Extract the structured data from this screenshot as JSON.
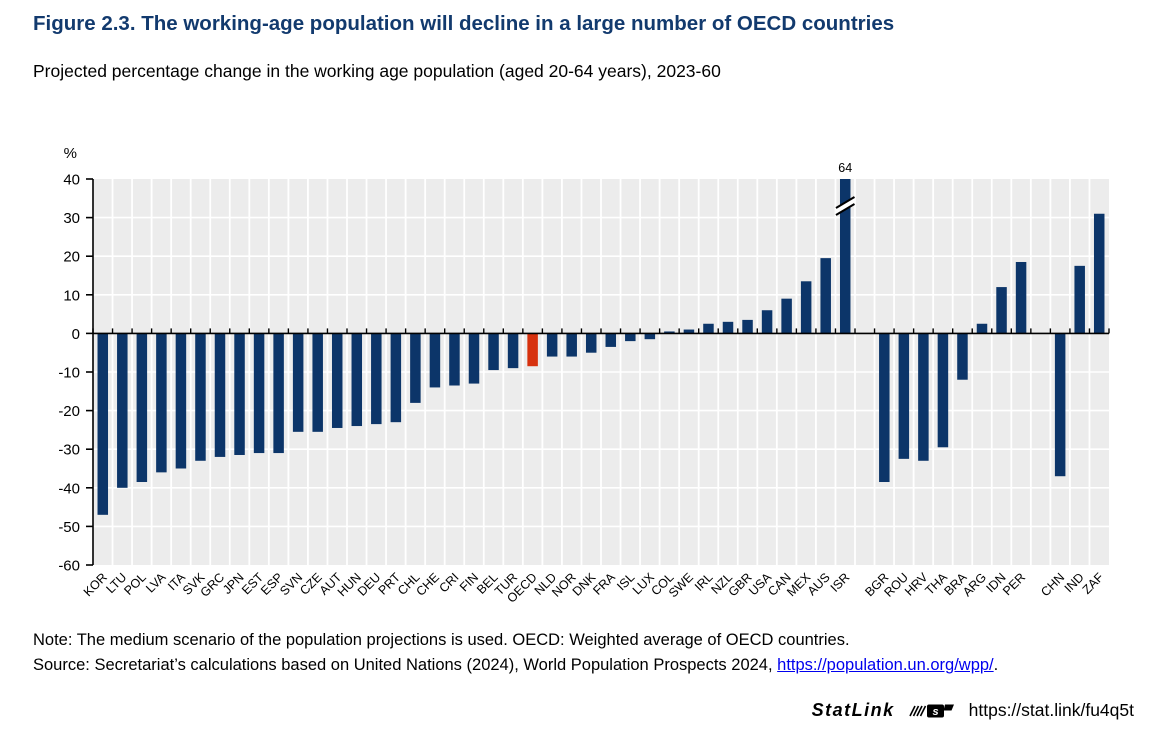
{
  "title": "Figure 2.3. The working-age population will decline in a large number of OECD countries",
  "subtitle": "Projected percentage change in the working age population (aged 20-64 years), 2023-60",
  "note": "Note: The medium scenario of the population projections is used. OECD: Weighted average of OECD countries.",
  "source": {
    "prefix": "Source: Secretariat’s calculations based on United Nations (2024), World Population Prospects 2024, ",
    "link_text": "https://population.un.org/wpp/",
    "suffix": "."
  },
  "statlink": {
    "label": "StatLink",
    "icon": "statlink-barcode-icon",
    "url": "https://stat.link/fu4q5t"
  },
  "colors": {
    "title": "#123a6e",
    "bar": "#0c3569",
    "highlight": "#d7310e",
    "plot_bg": "#ececec",
    "grid": "#ffffff",
    "axis": "#000000",
    "link": "#0000ee",
    "text": "#000000"
  },
  "chart_data": {
    "type": "bar",
    "title": "Projected percentage change in the working age population (aged 20-64 years), 2023-60",
    "xlabel": "",
    "ylabel": "%",
    "ylim": [
      -60,
      40
    ],
    "yticks": [
      40,
      30,
      20,
      10,
      0,
      -10,
      -20,
      -30,
      -40,
      -50,
      -60
    ],
    "grid": true,
    "legend": "none",
    "highlight_category": "OECD",
    "bars": [
      {
        "code": "KOR",
        "value": -47
      },
      {
        "code": "LTU",
        "value": -40
      },
      {
        "code": "POL",
        "value": -38.5
      },
      {
        "code": "LVA",
        "value": -36
      },
      {
        "code": "ITA",
        "value": -35
      },
      {
        "code": "SVK",
        "value": -33
      },
      {
        "code": "GRC",
        "value": -32
      },
      {
        "code": "JPN",
        "value": -31.5
      },
      {
        "code": "EST",
        "value": -31
      },
      {
        "code": "ESP",
        "value": -31
      },
      {
        "code": "SVN",
        "value": -25.5
      },
      {
        "code": "CZE",
        "value": -25.5
      },
      {
        "code": "AUT",
        "value": -24.5
      },
      {
        "code": "HUN",
        "value": -24
      },
      {
        "code": "DEU",
        "value": -23.5
      },
      {
        "code": "PRT",
        "value": -23
      },
      {
        "code": "CHL",
        "value": -18
      },
      {
        "code": "CHE",
        "value": -14
      },
      {
        "code": "CRI",
        "value": -13.5
      },
      {
        "code": "FIN",
        "value": -13
      },
      {
        "code": "BEL",
        "value": -9.5
      },
      {
        "code": "TUR",
        "value": -9
      },
      {
        "code": "OECD",
        "value": -8.5,
        "highlight": true
      },
      {
        "code": "NLD",
        "value": -6
      },
      {
        "code": "NOR",
        "value": -6
      },
      {
        "code": "DNK",
        "value": -5
      },
      {
        "code": "FRA",
        "value": -3.5
      },
      {
        "code": "ISL",
        "value": -2
      },
      {
        "code": "LUX",
        "value": -1.5
      },
      {
        "code": "COL",
        "value": 0.5
      },
      {
        "code": "SWE",
        "value": 1
      },
      {
        "code": "IRL",
        "value": 2.5
      },
      {
        "code": "NZL",
        "value": 3
      },
      {
        "code": "GBR",
        "value": 3.5
      },
      {
        "code": "USA",
        "value": 6
      },
      {
        "code": "CAN",
        "value": 9
      },
      {
        "code": "MEX",
        "value": 13.5
      },
      {
        "code": "AUS",
        "value": 19.5
      },
      {
        "code": "ISR",
        "value": 64,
        "clipped_at": 40,
        "data_label": "64",
        "axis_break": true
      },
      {
        "gap": true
      },
      {
        "code": "BGR",
        "value": -38.5
      },
      {
        "code": "ROU",
        "value": -32.5
      },
      {
        "code": "HRV",
        "value": -33
      },
      {
        "code": "THA",
        "value": -29.5
      },
      {
        "code": "BRA",
        "value": -12
      },
      {
        "code": "ARG",
        "value": 2.5
      },
      {
        "code": "IDN",
        "value": 12
      },
      {
        "code": "PER",
        "value": 18.5
      },
      {
        "gap": true
      },
      {
        "code": "CHN",
        "value": -37
      },
      {
        "code": "IND",
        "value": 17.5
      },
      {
        "code": "ZAF",
        "value": 31
      }
    ]
  }
}
